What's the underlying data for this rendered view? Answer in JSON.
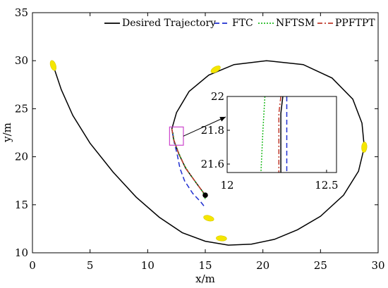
{
  "chart_data": {
    "type": "line",
    "xlabel": "x/m",
    "ylabel": "y/m",
    "xlim": [
      0,
      30
    ],
    "ylim": [
      10,
      35
    ],
    "xticks": [
      "0",
      "5",
      "10",
      "15",
      "20",
      "25",
      "30"
    ],
    "yticks": [
      "10",
      "15",
      "20",
      "25",
      "30",
      "35"
    ],
    "legend": {
      "position": "top-right",
      "entries": [
        {
          "label": "Desired Trajectory",
          "color": "#000000",
          "style": "solid"
        },
        {
          "label": "FTC",
          "color": "#1f2fd0",
          "style": "dashed"
        },
        {
          "label": "NFTSM",
          "color": "#22bb22",
          "style": "dotted"
        },
        {
          "label": "PPFTPT",
          "color": "#c0392b",
          "style": "dashdot"
        }
      ]
    },
    "series": [
      {
        "name": "Desired Trajectory",
        "points": [
          [
            1.8,
            29.5
          ],
          [
            2.5,
            27.0
          ],
          [
            3.5,
            24.3
          ],
          [
            5.0,
            21.4
          ],
          [
            7.0,
            18.4
          ],
          [
            9.0,
            15.8
          ],
          [
            11.0,
            13.7
          ],
          [
            13.0,
            12.1
          ],
          [
            15.0,
            11.2
          ],
          [
            17.0,
            10.8
          ],
          [
            19.0,
            10.9
          ],
          [
            21.0,
            11.4
          ],
          [
            23.0,
            12.4
          ],
          [
            25.0,
            13.8
          ],
          [
            27.0,
            16.0
          ],
          [
            28.3,
            18.5
          ],
          [
            28.8,
            21.0
          ],
          [
            28.6,
            23.5
          ],
          [
            27.8,
            26.0
          ],
          [
            26.0,
            28.2
          ],
          [
            23.5,
            29.6
          ],
          [
            20.3,
            30.0
          ],
          [
            17.5,
            29.6
          ],
          [
            15.3,
            28.5
          ],
          [
            13.6,
            26.8
          ],
          [
            12.5,
            24.6
          ],
          [
            12.1,
            22.9
          ],
          [
            12.25,
            21.8
          ],
          [
            12.7,
            20.3
          ],
          [
            13.3,
            18.8
          ],
          [
            14.2,
            17.3
          ],
          [
            15.0,
            16.0
          ]
        ]
      },
      {
        "name": "FTC",
        "points": [
          [
            12.15,
            22.6
          ],
          [
            12.3,
            21.5
          ],
          [
            12.55,
            20.3
          ],
          [
            12.8,
            18.8
          ],
          [
            13.2,
            17.5
          ],
          [
            13.9,
            16.2
          ],
          [
            14.6,
            15.3
          ],
          [
            15.0,
            14.7
          ]
        ]
      },
      {
        "name": "NFTSM",
        "points": [
          [
            12.2,
            22.5
          ],
          [
            12.3,
            21.6
          ],
          [
            12.7,
            20.4
          ],
          [
            13.1,
            19.3
          ],
          [
            13.6,
            18.3
          ],
          [
            14.2,
            17.3
          ],
          [
            14.8,
            16.3
          ],
          [
            15.0,
            15.6
          ]
        ]
      },
      {
        "name": "PPFTPT",
        "points": [
          [
            12.1,
            22.9
          ],
          [
            12.25,
            21.8
          ],
          [
            12.7,
            20.3
          ],
          [
            13.3,
            18.8
          ],
          [
            14.2,
            17.3
          ],
          [
            15.0,
            16.0
          ]
        ]
      }
    ],
    "markers": {
      "start_point": {
        "x": 15.0,
        "y": 16.0,
        "color": "#000000"
      },
      "vessel_color": "#f5e600",
      "vessels": [
        {
          "x": 1.8,
          "y": 29.5
        },
        {
          "x": 15.9,
          "y": 29.1
        },
        {
          "x": 28.8,
          "y": 21.0
        },
        {
          "x": 16.4,
          "y": 11.5
        },
        {
          "x": 15.3,
          "y": 13.6
        }
      ]
    },
    "zoom_box": {
      "x_range": [
        11.9,
        13.1
      ],
      "y_range": [
        21.2,
        23.1
      ],
      "color": "#cc44cc"
    },
    "inset": {
      "xlim": [
        12,
        12.55
      ],
      "ylim": [
        21.55,
        22.0
      ],
      "xticks": [
        "12",
        "12.5"
      ],
      "yticks": [
        "21.6",
        "21.8",
        "22"
      ],
      "series": [
        {
          "name": "Desired Trajectory",
          "points": [
            [
              12.28,
              22.0
            ],
            [
              12.27,
              21.9
            ],
            [
              12.27,
              21.8
            ],
            [
              12.27,
              21.7
            ],
            [
              12.27,
              21.55
            ]
          ]
        },
        {
          "name": "FTC",
          "points": [
            [
              12.3,
              22.0
            ],
            [
              12.3,
              21.8
            ],
            [
              12.3,
              21.55
            ]
          ]
        },
        {
          "name": "NFTSM",
          "points": [
            [
              12.19,
              22.0
            ],
            [
              12.18,
              21.8
            ],
            [
              12.17,
              21.55
            ]
          ]
        },
        {
          "name": "PPFTPT",
          "points": [
            [
              12.27,
              22.0
            ],
            [
              12.26,
              21.9
            ],
            [
              12.26,
              21.8
            ],
            [
              12.26,
              21.7
            ],
            [
              12.26,
              21.55
            ]
          ]
        }
      ]
    }
  }
}
